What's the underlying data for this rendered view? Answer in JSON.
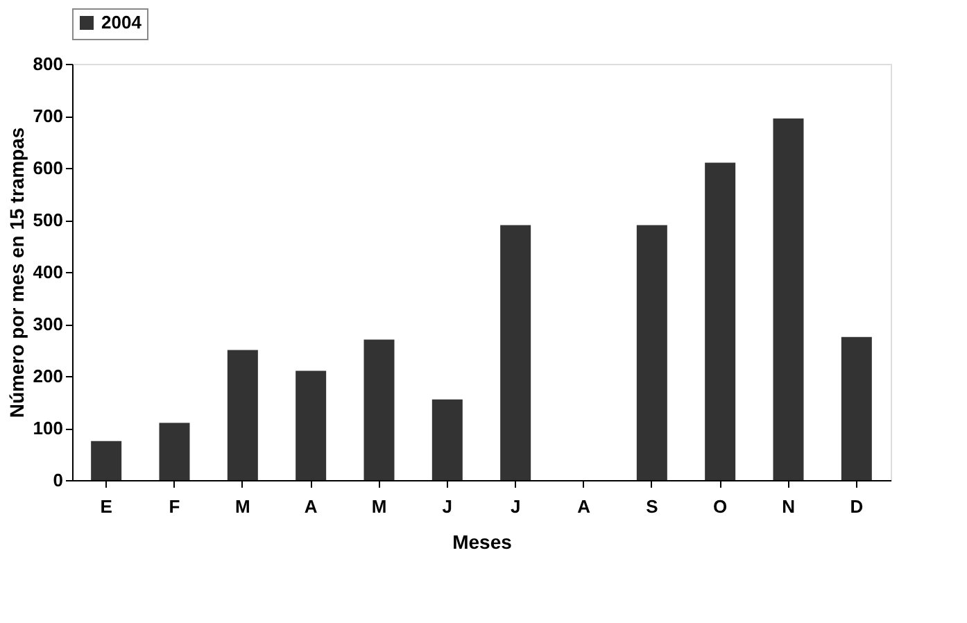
{
  "chart_data": {
    "type": "bar",
    "xlabel": "Meses",
    "ylabel": "Número por mes en 15 trampas",
    "categories": [
      "E",
      "F",
      "M",
      "A",
      "M",
      "J",
      "J",
      "A",
      "S",
      "O",
      "N",
      "D"
    ],
    "series": [
      {
        "name": "2004",
        "color": "#333333",
        "values": [
          75,
          110,
          250,
          210,
          270,
          155,
          490,
          null,
          490,
          610,
          695,
          275
        ]
      }
    ],
    "ylim": [
      0,
      800
    ],
    "yticks": [
      0,
      100,
      200,
      300,
      400,
      500,
      600,
      700,
      800
    ],
    "legend": "top",
    "grid": false
  }
}
